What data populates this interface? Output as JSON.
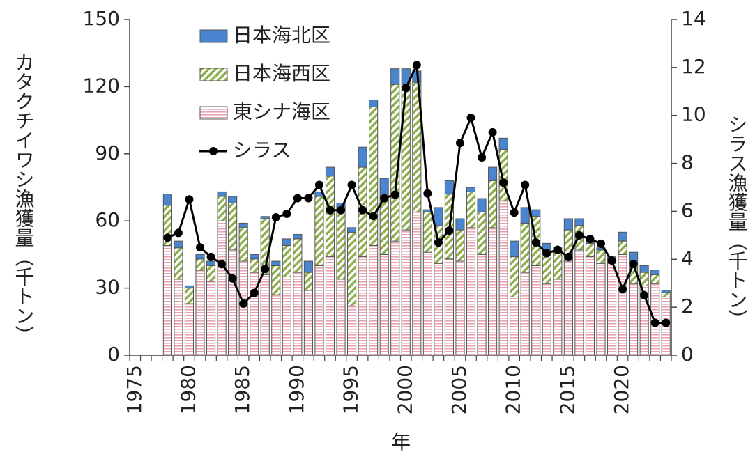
{
  "chart_data": {
    "type": "bar",
    "stacked": true,
    "ylabel": "カタクチイワシ漁獲量（千トン）",
    "y2label": "シラス漁獲量（千トン）",
    "xlabel": "年",
    "categories": [
      1975,
      null,
      null,
      null,
      null,
      1980,
      null,
      null,
      null,
      null,
      1985,
      null,
      null,
      null,
      null,
      1990,
      null,
      null,
      null,
      null,
      1995,
      null,
      null,
      null,
      null,
      2000,
      null,
      null,
      null,
      null,
      2005,
      null,
      null,
      null,
      null,
      2010,
      null,
      null,
      null,
      null,
      2015,
      null,
      null,
      null,
      null,
      2020,
      null,
      null,
      null,
      null
    ],
    "series": [
      {
        "name": "東シナ海区",
        "color": "#e8a2b0",
        "hatch": "horizontal",
        "values": [
          null,
          null,
          null,
          49,
          34,
          23,
          38,
          33,
          60,
          47,
          42,
          37,
          36,
          27,
          35,
          37,
          29,
          40,
          44,
          34,
          22,
          44,
          49,
          45,
          51,
          56,
          64,
          46,
          41,
          43,
          42,
          57,
          45,
          57,
          69,
          26,
          37,
          40,
          32,
          34,
          42,
          47,
          44,
          41,
          41,
          45,
          32,
          31,
          32,
          26
        ]
      },
      {
        "name": "日本海西区",
        "color": "#8fae4c",
        "hatch": "diagonal",
        "values": [
          null,
          null,
          null,
          18,
          14,
          7,
          5,
          7,
          11,
          21,
          15,
          6,
          25,
          13,
          14,
          15,
          8,
          31,
          36,
          32,
          33,
          40,
          62,
          27,
          70,
          65,
          58,
          18,
          17,
          29,
          14,
          16,
          19,
          21,
          23,
          18,
          22,
          22,
          15,
          12,
          14,
          11,
          6,
          6,
          1,
          6,
          9,
          6,
          4,
          2
        ]
      },
      {
        "name": "日本海北区",
        "color": "#4a86d0",
        "hatch": null,
        "values": [
          null,
          null,
          null,
          5,
          3,
          1,
          2,
          2,
          2,
          3,
          2,
          2,
          1,
          2,
          3,
          2,
          5,
          2,
          4,
          2,
          2,
          9,
          3,
          7,
          7,
          7,
          5,
          1,
          8,
          6,
          5,
          2,
          6,
          6,
          5,
          7,
          7,
          3,
          3,
          2,
          5,
          3,
          1,
          1,
          2,
          4,
          5,
          3,
          2,
          1
        ]
      },
      {
        "name": "シラス",
        "color": "#000000",
        "type": "line",
        "axis": "y2",
        "values": [
          null,
          null,
          null,
          4.9,
          5.1,
          6.5,
          4.5,
          4.1,
          3.8,
          3.2,
          2.15,
          2.6,
          3.6,
          5.75,
          5.9,
          6.55,
          6.55,
          7.1,
          6.05,
          6.05,
          7.1,
          6.05,
          5.8,
          6.55,
          6.7,
          11.15,
          12.1,
          6.75,
          4.7,
          5.2,
          8.85,
          9.9,
          8.25,
          9.3,
          7.2,
          5.95,
          7.1,
          4.7,
          4.25,
          4.4,
          4.1,
          5.0,
          4.85,
          4.65,
          3.95,
          2.75,
          3.8,
          2.5,
          1.35,
          1.35
        ]
      }
    ],
    "ylim": [
      0,
      150
    ],
    "yticks": [
      0,
      30,
      60,
      90,
      120,
      150
    ],
    "y2lim": [
      0,
      14
    ],
    "y2ticks": [
      0,
      2,
      4,
      6,
      8,
      10,
      12,
      14
    ]
  }
}
